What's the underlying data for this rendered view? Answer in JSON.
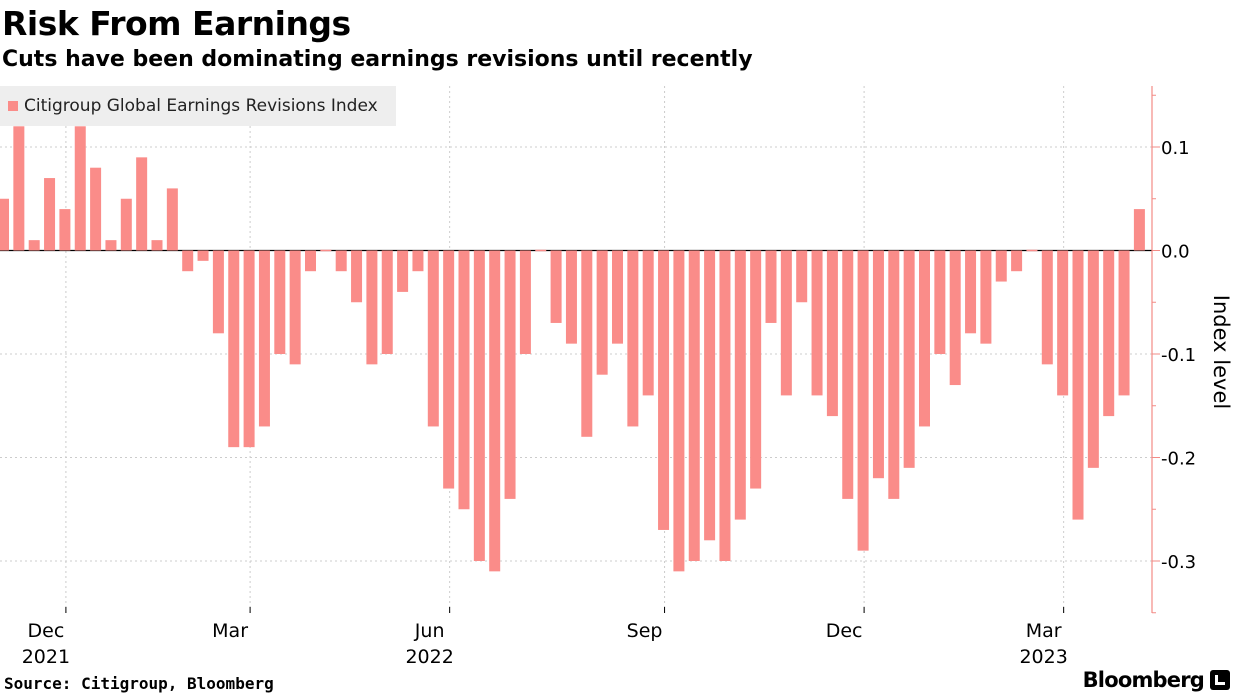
{
  "header": {
    "title": "Risk From Earnings",
    "subtitle": "Cuts have been dominating earnings revisions until recently"
  },
  "footer": {
    "source": "Source: Citigroup, Bloomberg",
    "brand": "Bloomberg"
  },
  "colors": {
    "bar": "#fa8c89",
    "grid": "#cccccc",
    "axis": "#f28b86",
    "legend_bg": "#eeeeee"
  },
  "chart_data": {
    "type": "bar",
    "title": "Risk From Earnings",
    "subtitle": "Cuts have been dominating earnings revisions until recently",
    "xlabel": "",
    "ylabel": "Index level",
    "ylim": [
      -0.35,
      0.16
    ],
    "y_ticks": [
      0.1,
      0.0,
      -0.1,
      -0.2,
      -0.3
    ],
    "y_tick_labels": [
      "0.1",
      "0.0",
      "-0.1",
      "-0.2",
      "-0.3"
    ],
    "grid": true,
    "legend": {
      "position": "top-left",
      "entries": [
        "Citigroup Global Earnings Revisions Index"
      ]
    },
    "x_ticks": [
      {
        "label": "Dec",
        "year": "2021",
        "bar_index": 4
      },
      {
        "label": "Mar",
        "year": "",
        "bar_index": 16
      },
      {
        "label": "Jun",
        "year": "2022",
        "bar_index": 29
      },
      {
        "label": "Sep",
        "year": "",
        "bar_index": 43
      },
      {
        "label": "Dec",
        "year": "",
        "bar_index": 56
      },
      {
        "label": "Mar",
        "year": "2023",
        "bar_index": 69
      }
    ],
    "series": [
      {
        "name": "Citigroup Global Earnings Revisions Index",
        "values": [
          0.05,
          0.12,
          0.01,
          0.07,
          0.04,
          0.12,
          0.08,
          0.01,
          0.05,
          0.09,
          0.01,
          0.06,
          -0.02,
          -0.01,
          -0.08,
          -0.19,
          -0.19,
          -0.17,
          -0.1,
          -0.11,
          -0.02,
          0.0,
          -0.02,
          -0.05,
          -0.11,
          -0.1,
          -0.04,
          -0.02,
          -0.17,
          -0.23,
          -0.25,
          -0.3,
          -0.31,
          -0.24,
          -0.1,
          0.0,
          -0.07,
          -0.09,
          -0.18,
          -0.12,
          -0.09,
          -0.17,
          -0.14,
          -0.27,
          -0.31,
          -0.3,
          -0.28,
          -0.3,
          -0.26,
          -0.23,
          -0.07,
          -0.14,
          -0.05,
          -0.14,
          -0.16,
          -0.24,
          -0.29,
          -0.22,
          -0.24,
          -0.21,
          -0.17,
          -0.1,
          -0.13,
          -0.08,
          -0.09,
          -0.03,
          -0.02,
          0.0,
          -0.11,
          -0.14,
          -0.26,
          -0.21,
          -0.16,
          -0.14,
          0.04
        ]
      }
    ]
  }
}
